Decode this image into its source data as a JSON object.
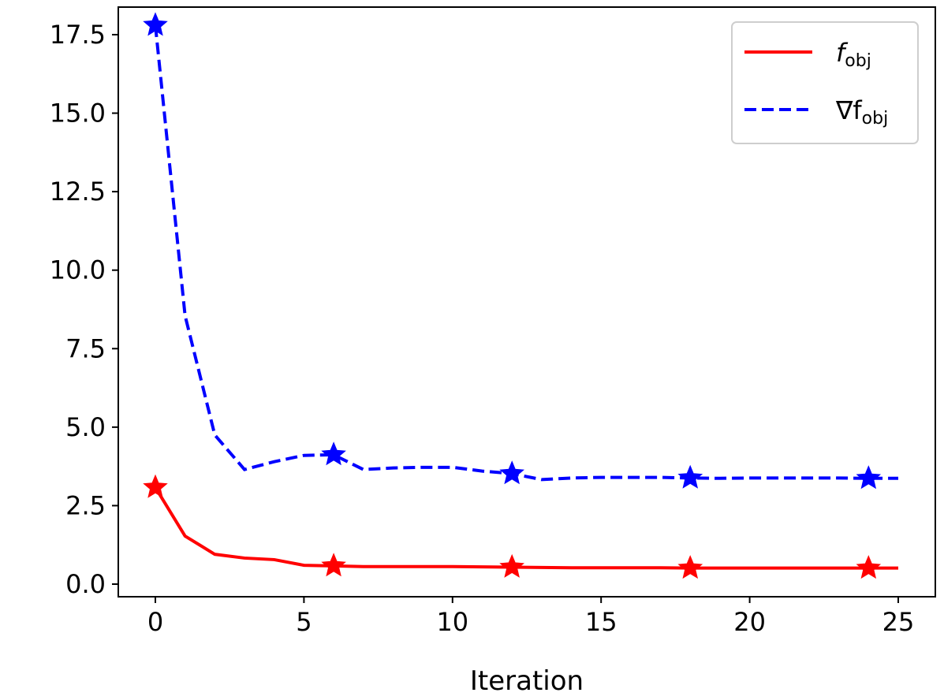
{
  "chart_data": {
    "type": "line",
    "title": "",
    "xlabel": "Iteration",
    "ylabel": "",
    "xlim": [
      -1.25,
      26.25
    ],
    "ylim": [
      -0.4,
      18.5
    ],
    "xticks": [
      0,
      5,
      10,
      15,
      20,
      25
    ],
    "yticks": [
      0.0,
      2.5,
      5.0,
      7.5,
      10.0,
      12.5,
      15.0,
      17.5
    ],
    "ytick_labels": [
      "0.0",
      "2.5",
      "5.0",
      "7.5",
      "10.0",
      "12.5",
      "15.0",
      "17.5"
    ],
    "grid": false,
    "legend_placement": "top-right",
    "x": [
      0,
      1,
      2,
      3,
      4,
      5,
      6,
      7,
      8,
      9,
      10,
      11,
      12,
      13,
      14,
      15,
      16,
      17,
      18,
      19,
      20,
      21,
      22,
      23,
      24,
      25
    ],
    "marker_every": 6,
    "series": [
      {
        "name": "f_obj",
        "legend_label": "f",
        "legend_sub": "obj",
        "color": "#ff0000",
        "style": "solid",
        "marker": "star",
        "values": [
          3.08,
          1.53,
          0.95,
          0.83,
          0.78,
          0.6,
          0.58,
          0.56,
          0.56,
          0.56,
          0.56,
          0.55,
          0.54,
          0.53,
          0.52,
          0.52,
          0.52,
          0.52,
          0.51,
          0.51,
          0.51,
          0.51,
          0.51,
          0.51,
          0.51,
          0.51
        ]
      },
      {
        "name": "∇f_obj",
        "legend_label": "∇f",
        "legend_sub": "obj",
        "color": "#0000ff",
        "style": "dashed",
        "marker": "star",
        "values": [
          17.8,
          8.55,
          4.75,
          3.65,
          3.9,
          4.1,
          4.12,
          3.65,
          3.7,
          3.72,
          3.72,
          3.6,
          3.52,
          3.33,
          3.38,
          3.4,
          3.4,
          3.4,
          3.38,
          3.37,
          3.38,
          3.38,
          3.38,
          3.38,
          3.37,
          3.37
        ]
      }
    ]
  }
}
